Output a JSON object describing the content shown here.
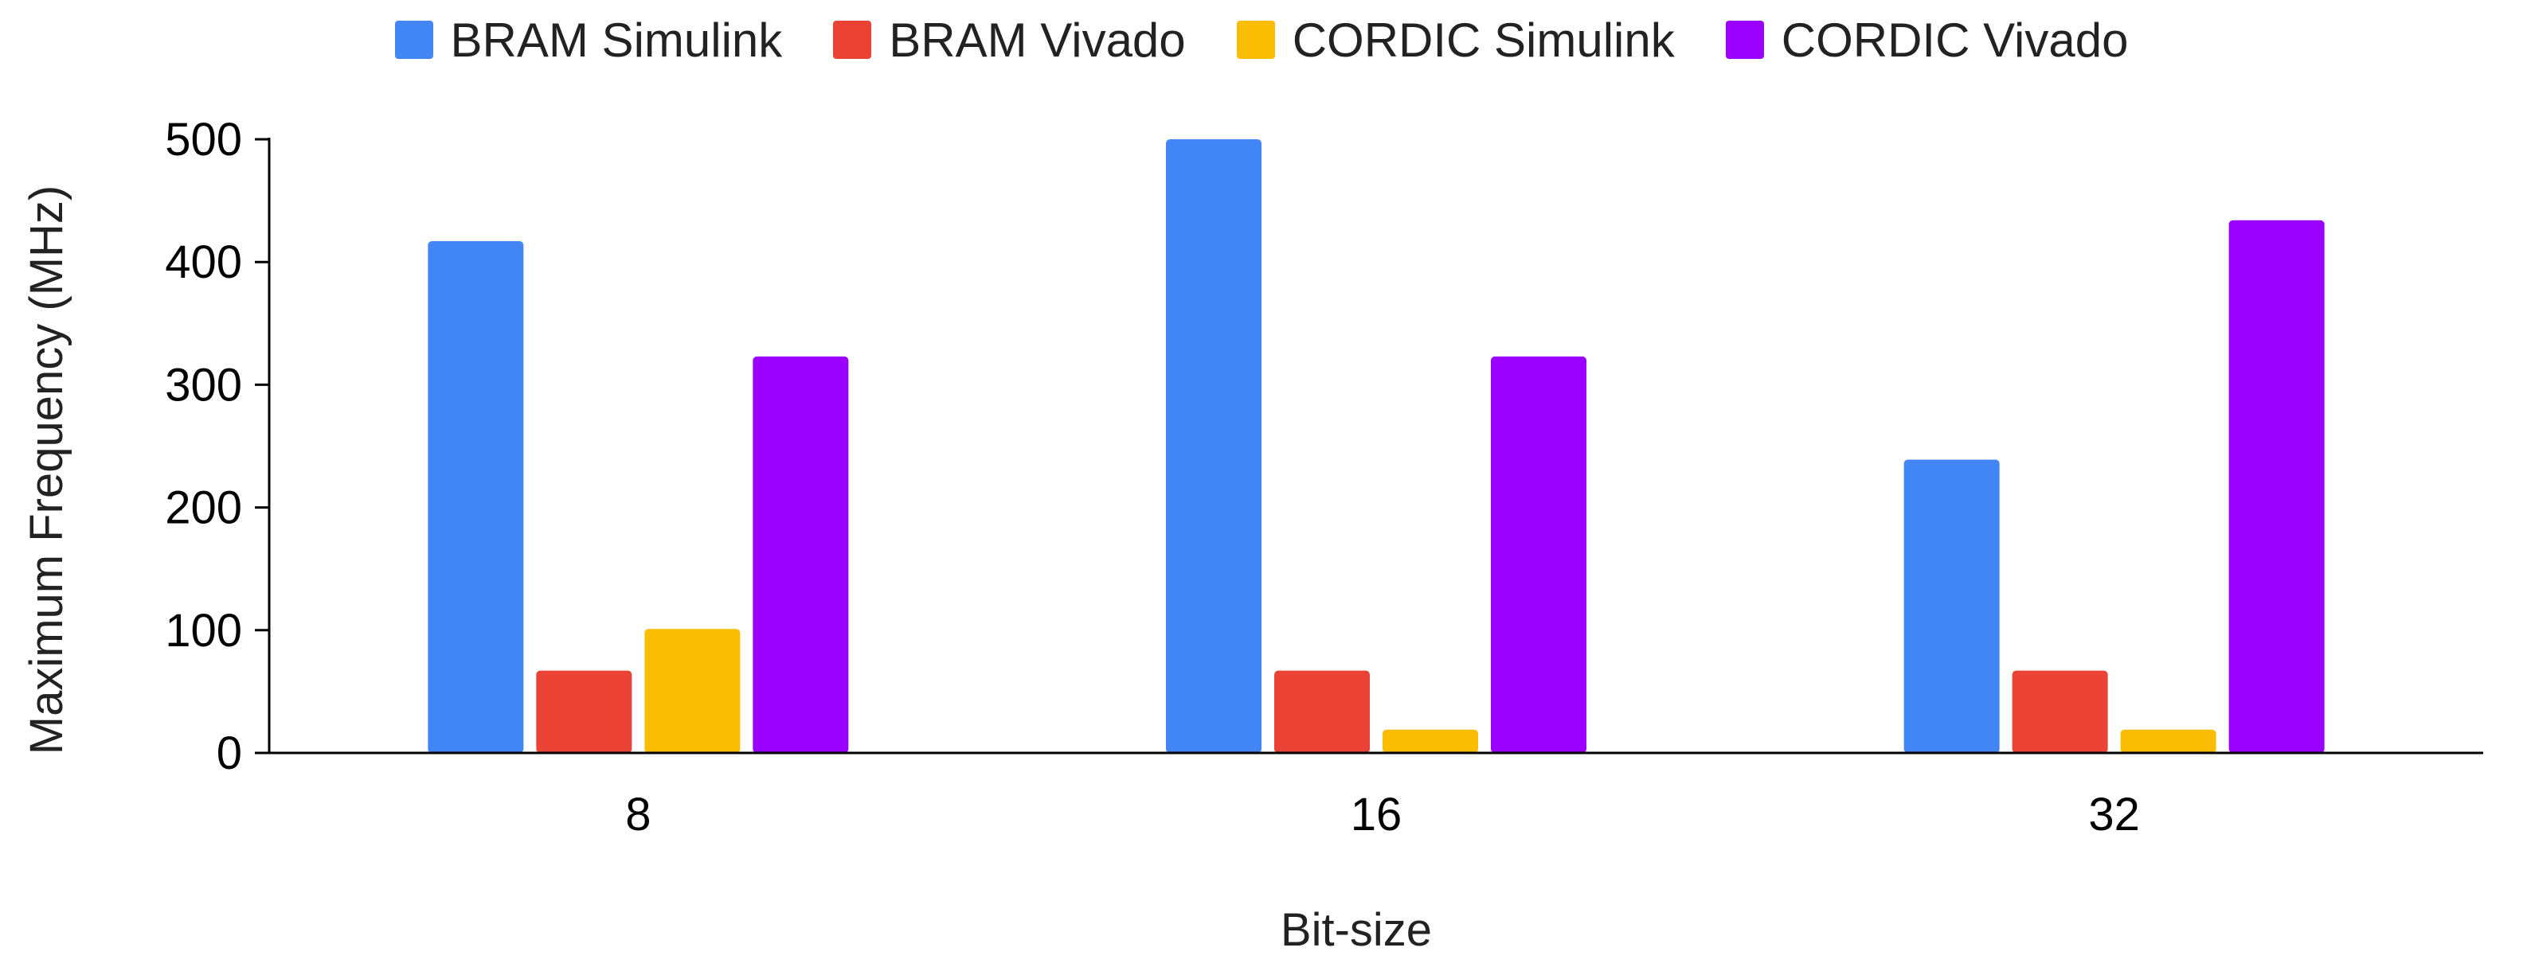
{
  "chart_data": {
    "type": "bar",
    "xlabel": "Bit-size",
    "ylabel": "Maximum Frequency (MHz)",
    "categories": [
      "8",
      "16",
      "32"
    ],
    "ylim": [
      0,
      500
    ],
    "yticks": [
      0,
      100,
      200,
      300,
      400,
      500
    ],
    "grid": false,
    "legend_position": "top",
    "series": [
      {
        "name": "BRAM Simulink",
        "color": "#4285F4",
        "values": [
          417,
          500,
          239
        ]
      },
      {
        "name": "BRAM Vivado",
        "color": "#EA4335",
        "values": [
          67,
          67,
          67
        ]
      },
      {
        "name": "CORDIC Simulink",
        "color": "#FBBC04",
        "values": [
          101,
          19,
          19
        ]
      },
      {
        "name": "CORDIC Vivado",
        "color": "#9900FF",
        "values": [
          323,
          323,
          434
        ]
      }
    ]
  }
}
